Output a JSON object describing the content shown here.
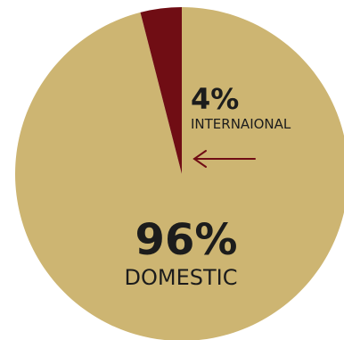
{
  "chart_data": {
    "type": "pie",
    "slices": [
      {
        "label": "DOMESTIC",
        "value": 96,
        "value_label": "96%",
        "color": "#cdb572"
      },
      {
        "label": "INTERNAIONAL",
        "value": 4,
        "value_label": "4%",
        "color": "#700d14"
      }
    ],
    "annotation": {
      "arrow": true,
      "arrow_color": "#700d14",
      "points_to": "INTERNAIONAL"
    },
    "text_color": "#1c1c1c"
  }
}
